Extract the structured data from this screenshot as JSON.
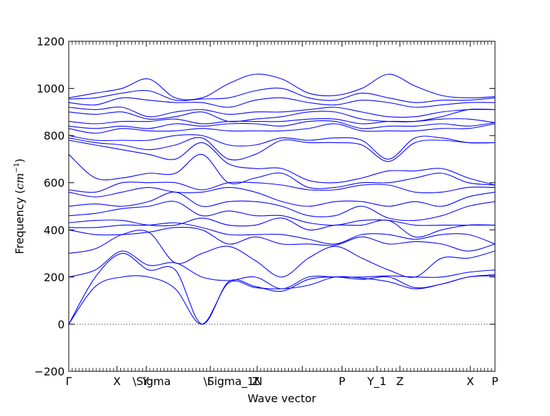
{
  "chart_data": {
    "type": "line",
    "title": "",
    "xlabel": "Wave vector",
    "ylabel_prefix": "Frequency (",
    "ylabel_unit_base": "cm",
    "ylabel_unit_exp": "−1",
    "ylabel_suffix": ")",
    "ylim": [
      -200,
      1200
    ],
    "yticks": [
      -200,
      0,
      200,
      400,
      600,
      800,
      1000,
      1200
    ],
    "line_color": "#0000ff",
    "zero_line_color": "#000000",
    "zero_line_style": "dotted",
    "grid": false,
    "path": {
      "stops": [
        0,
        0.113,
        0.182,
        0.332,
        0.442,
        0.548,
        0.641,
        0.723,
        0.777,
        0.942,
        1.0
      ],
      "labels": [
        "Γ",
        "X",
        "\\Sigma",
        "Γ",
        "\\Sigma_1N",
        "",
        "P",
        "Y_1",
        "Z",
        "X",
        "P"
      ],
      "overprint_labels": [
        {
          "x": 0.182,
          "text": "Y"
        },
        {
          "x": 0.442,
          "text": "Z"
        }
      ]
    },
    "series_unit": "cm^-1",
    "bands": [
      [
        0,
        160,
        200,
        200,
        150,
        0,
        175,
        155,
        150,
        165,
        200,
        195,
        180,
        150,
        170,
        200,
        205
      ],
      [
        0,
        200,
        300,
        230,
        230,
        0,
        180,
        160,
        140,
        190,
        200,
        190,
        200,
        155,
        170,
        200,
        210
      ],
      [
        200,
        230,
        310,
        250,
        260,
        200,
        185,
        200,
        150,
        200,
        200,
        200,
        205,
        200,
        200,
        220,
        230
      ],
      [
        300,
        320,
        380,
        390,
        260,
        300,
        330,
        270,
        200,
        280,
        330,
        280,
        230,
        200,
        280,
        280,
        310
      ],
      [
        400,
        380,
        380,
        390,
        410,
        400,
        340,
        370,
        340,
        340,
        335,
        370,
        340,
        350,
        340,
        310,
        340
      ],
      [
        410,
        410,
        420,
        420,
        430,
        410,
        380,
        380,
        380,
        360,
        340,
        380,
        380,
        360,
        380,
        380,
        340
      ],
      [
        430,
        440,
        440,
        420,
        420,
        450,
        420,
        420,
        450,
        400,
        420,
        420,
        440,
        370,
        400,
        420,
        420
      ],
      [
        460,
        470,
        490,
        500,
        520,
        460,
        480,
        460,
        460,
        430,
        420,
        440,
        440,
        420,
        420,
        420,
        420
      ],
      [
        500,
        510,
        500,
        520,
        560,
        500,
        520,
        520,
        500,
        460,
        460,
        500,
        450,
        440,
        460,
        500,
        520
      ],
      [
        560,
        540,
        560,
        580,
        560,
        560,
        580,
        560,
        520,
        500,
        520,
        520,
        500,
        520,
        500,
        540,
        560
      ],
      [
        570,
        560,
        600,
        600,
        600,
        570,
        600,
        600,
        590,
        570,
        570,
        590,
        590,
        560,
        560,
        580,
        580
      ],
      [
        720,
        620,
        620,
        640,
        640,
        720,
        600,
        620,
        640,
        580,
        580,
        600,
        600,
        620,
        640,
        600,
        590
      ],
      [
        780,
        760,
        740,
        720,
        700,
        770,
        680,
        660,
        660,
        610,
        600,
        620,
        650,
        650,
        660,
        620,
        590
      ],
      [
        790,
        770,
        760,
        740,
        760,
        790,
        700,
        720,
        780,
        770,
        770,
        760,
        690,
        770,
        780,
        770,
        770
      ],
      [
        800,
        780,
        780,
        780,
        800,
        800,
        760,
        760,
        790,
        780,
        790,
        780,
        700,
        790,
        790,
        770,
        770
      ],
      [
        830,
        810,
        830,
        820,
        820,
        830,
        820,
        820,
        820,
        830,
        850,
        820,
        820,
        820,
        830,
        830,
        850
      ],
      [
        840,
        830,
        840,
        830,
        850,
        840,
        850,
        850,
        840,
        860,
        860,
        830,
        840,
        840,
        850,
        840,
        855
      ],
      [
        860,
        850,
        860,
        860,
        870,
        850,
        860,
        860,
        860,
        870,
        870,
        850,
        860,
        860,
        870,
        870,
        855
      ],
      [
        900,
        890,
        900,
        870,
        880,
        900,
        860,
        870,
        880,
        900,
        900,
        870,
        860,
        860,
        880,
        910,
        910
      ],
      [
        920,
        910,
        920,
        880,
        900,
        910,
        890,
        900,
        900,
        910,
        920,
        900,
        880,
        880,
        900,
        910,
        910
      ],
      [
        940,
        930,
        960,
        950,
        940,
        940,
        920,
        950,
        960,
        940,
        930,
        950,
        940,
        920,
        930,
        940,
        940
      ],
      [
        955,
        960,
        980,
        990,
        950,
        955,
        960,
        990,
        1000,
        960,
        950,
        980,
        960,
        940,
        950,
        950,
        960
      ],
      [
        960,
        980,
        1000,
        1040,
        960,
        960,
        1020,
        1060,
        1040,
        980,
        970,
        1000,
        1060,
        1010,
        970,
        960,
        965
      ]
    ]
  }
}
